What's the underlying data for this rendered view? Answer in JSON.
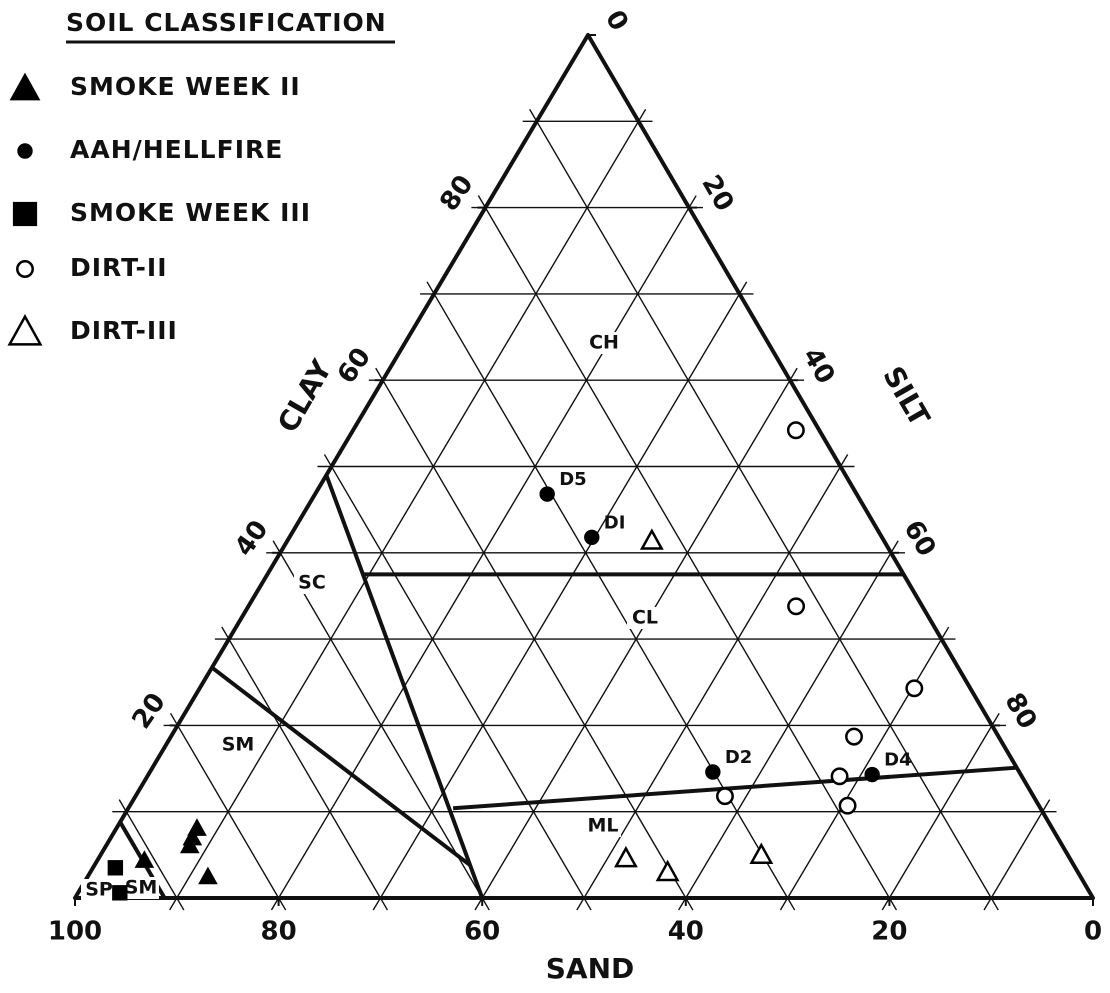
{
  "chart_data": {
    "type": "ternary",
    "legend_title": "SOIL CLASSIFICATION",
    "axes": {
      "sand": {
        "label": "SAND",
        "ticks": [
          0,
          20,
          40,
          60,
          80,
          100
        ]
      },
      "clay": {
        "label": "CLAY",
        "ticks": [
          20,
          40,
          60,
          80
        ]
      },
      "silt": {
        "label": "SILT",
        "ticks": [
          0,
          20,
          40,
          60,
          80
        ]
      }
    },
    "grid_ticks": [
      10,
      20,
      30,
      40,
      50,
      60,
      70,
      80,
      90
    ],
    "series": [
      {
        "name": "SMOKE WEEK II",
        "marker": "triangle",
        "filled": true,
        "color": "#000000",
        "points": [
          {
            "sand": 84,
            "clay": 8.1
          },
          {
            "sand": 85,
            "clay": 7
          },
          {
            "sand": 85.7,
            "clay": 6.1
          },
          {
            "sand": 91,
            "clay": 4.4
          },
          {
            "sand": 85.7,
            "clay": 2.5
          }
        ]
      },
      {
        "name": "AAH/HELLFIRE",
        "marker": "circle",
        "filled": true,
        "color": "#000000",
        "points": [
          {
            "sand": 30.4,
            "clay": 46.8,
            "label": "D5"
          },
          {
            "sand": 28.5,
            "clay": 41.8,
            "label": "DI"
          },
          {
            "sand": 30.1,
            "clay": 14.6,
            "label": "D2"
          },
          {
            "sand": 14.6,
            "clay": 14.3,
            "label": "D4"
          }
        ]
      },
      {
        "name": "SMOKE WEEK III",
        "marker": "square",
        "filled": true,
        "color": "#000000",
        "points": [
          {
            "sand": 94.3,
            "clay": 3.5
          },
          {
            "sand": 95.3,
            "clay": 0.6
          }
        ]
      },
      {
        "name": "DIRT-II",
        "marker": "circle",
        "filled": false,
        "color": "#000000",
        "points": [
          {
            "sand": 2.3,
            "clay": 54.2
          },
          {
            "sand": 12.4,
            "clay": 33.8
          },
          {
            "sand": 5.5,
            "clay": 24.3
          },
          {
            "sand": 14.2,
            "clay": 18.7
          },
          {
            "sand": 17.9,
            "clay": 14.1
          },
          {
            "sand": 18.8,
            "clay": 10.7
          },
          {
            "sand": 30.3,
            "clay": 11.8
          }
        ]
      },
      {
        "name": "DIRT-III",
        "marker": "triangle",
        "filled": false,
        "color": "#000000",
        "points": [
          {
            "sand": 22.8,
            "clay": 41.4
          },
          {
            "sand": 43.6,
            "clay": 4.6
          },
          {
            "sand": 40.3,
            "clay": 3
          },
          {
            "sand": 30.1,
            "clay": 5
          }
        ]
      }
    ],
    "boundaries": [
      [
        {
          "sand": 51,
          "clay": 49
        },
        {
          "sand": 60,
          "clay": 0
        }
      ],
      [
        {
          "sand": 53,
          "clay": 37.5
        },
        {
          "sand": 0,
          "clay": 37.5
        }
      ],
      [
        {
          "sand": 73.3,
          "clay": 26.7
        },
        {
          "sand": 59.3,
          "clay": 3.8
        }
      ],
      [
        {
          "sand": 57.7,
          "clay": 10.4
        },
        {
          "sand": 0,
          "clay": 15.1
        }
      ],
      [
        {
          "sand": 91.2,
          "clay": 8.8
        },
        {
          "sand": 91.2,
          "clay": 0
        }
      ]
    ],
    "regions": [
      "CH",
      "SC",
      "CL",
      "SM",
      "ML",
      "SP",
      "SM"
    ]
  }
}
